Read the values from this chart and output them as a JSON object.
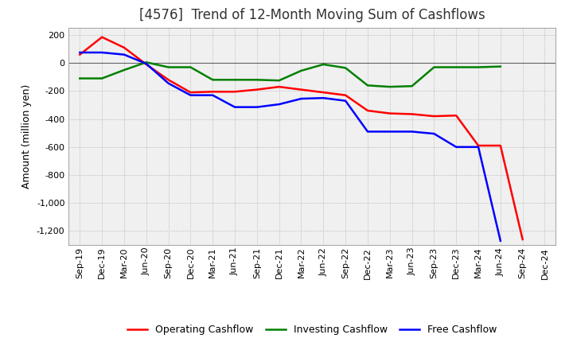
{
  "title": "[4576]  Trend of 12-Month Moving Sum of Cashflows",
  "ylabel": "Amount (million yen)",
  "xlabels": [
    "Sep-19",
    "Dec-19",
    "Mar-20",
    "Jun-20",
    "Sep-20",
    "Dec-20",
    "Mar-21",
    "Jun-21",
    "Sep-21",
    "Dec-21",
    "Mar-22",
    "Jun-22",
    "Sep-22",
    "Dec-22",
    "Mar-23",
    "Jun-23",
    "Sep-23",
    "Dec-23",
    "Mar-24",
    "Jun-24",
    "Sep-24",
    "Dec-24"
  ],
  "operating": [
    60,
    185,
    110,
    -10,
    -120,
    -210,
    -205,
    -205,
    -190,
    -170,
    -190,
    -210,
    -230,
    -340,
    -360,
    -365,
    -380,
    -375,
    -590,
    -590,
    -1260,
    null
  ],
  "investing": [
    -110,
    -110,
    -50,
    5,
    -30,
    -30,
    -120,
    -120,
    -120,
    -125,
    -55,
    -10,
    -35,
    -160,
    -170,
    -165,
    -30,
    -30,
    -30,
    -25,
    null,
    null
  ],
  "free": [
    75,
    75,
    60,
    -5,
    -145,
    -230,
    -230,
    -315,
    -315,
    -295,
    -255,
    -250,
    -270,
    -490,
    -490,
    -490,
    -505,
    -600,
    -600,
    -1270,
    null,
    null
  ],
  "ylim": [
    -1300,
    250
  ],
  "yticks": [
    200,
    0,
    -200,
    -400,
    -600,
    -800,
    -1000,
    -1200
  ],
  "operating_color": "#ff0000",
  "investing_color": "#008000",
  "free_color": "#0000ff",
  "background_color": "#ffffff",
  "plot_bg_color": "#f0f0f0",
  "grid_color": "#aaaaaa",
  "title_fontsize": 12,
  "label_fontsize": 9,
  "tick_fontsize": 8,
  "legend_fontsize": 9,
  "linewidth": 1.8
}
